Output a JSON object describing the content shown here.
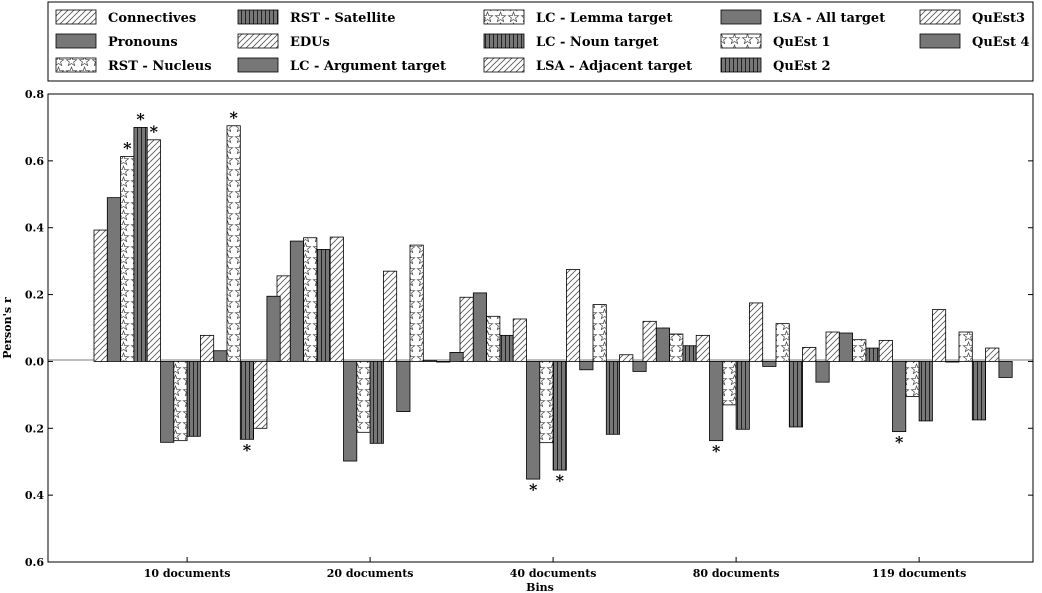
{
  "chart_data": {
    "type": "bar",
    "title": "",
    "xlabel": "Bins",
    "ylabel": "Person's r",
    "ylim": [
      -0.6,
      0.8
    ],
    "yticks": [
      0.8,
      0.6,
      0.4,
      0.2,
      0.0,
      -0.2,
      -0.4,
      -0.6
    ],
    "ytick_labels": [
      "0.8",
      "0.6",
      "0.4",
      "0.2",
      "0.0",
      "0.2",
      "0.4",
      "0.6"
    ],
    "categories": [
      "10 documents",
      "20 documents",
      "40 documents",
      "80 documents",
      "119 documents"
    ],
    "legend_position": "top",
    "significance_marker": "*",
    "series": [
      {
        "name": "Connectives",
        "pattern": "diag",
        "fill": "#ffffff",
        "values": [
          0.393,
          0.256,
          0.192,
          0.12,
          0.088
        ],
        "sig": []
      },
      {
        "name": "Pronouns",
        "pattern": "solid",
        "fill": "#777777",
        "values": [
          0.49,
          0.36,
          0.205,
          0.1,
          0.085
        ],
        "sig": []
      },
      {
        "name": "RST - Nucleus",
        "pattern": "star",
        "fill": "#ffffff",
        "values": [
          0.613,
          0.37,
          0.135,
          0.082,
          0.065
        ],
        "sig": [
          0
        ]
      },
      {
        "name": "RST - Satellite",
        "pattern": "vert",
        "fill": "#777777",
        "values": [
          0.7,
          0.335,
          0.078,
          0.047,
          0.04
        ],
        "sig": [
          0
        ]
      },
      {
        "name": "EDUs",
        "pattern": "diag",
        "fill": "#ffffff",
        "values": [
          0.663,
          0.372,
          0.127,
          0.078,
          0.063
        ],
        "sig": [
          0
        ]
      },
      {
        "name": "LC - Argument target",
        "pattern": "solid",
        "fill": "#777777",
        "values": [
          -0.242,
          -0.298,
          -0.352,
          -0.237,
          -0.21
        ],
        "sig": [
          2,
          3,
          4
        ]
      },
      {
        "name": "LC - Lemma target",
        "pattern": "star",
        "fill": "#ffffff",
        "values": [
          -0.237,
          -0.212,
          -0.243,
          -0.13,
          -0.105
        ],
        "sig": []
      },
      {
        "name": "LC - Noun target",
        "pattern": "vert",
        "fill": "#777777",
        "values": [
          -0.224,
          -0.245,
          -0.325,
          -0.203,
          -0.178
        ],
        "sig": [
          2
        ]
      },
      {
        "name": "LSA - Adjacent target",
        "pattern": "diag",
        "fill": "#ffffff",
        "values": [
          0.078,
          0.27,
          0.275,
          0.175,
          0.155
        ],
        "sig": []
      },
      {
        "name": "LSA - All target",
        "pattern": "solid",
        "fill": "#777777",
        "values": [
          0.032,
          -0.15,
          -0.025,
          -0.015,
          0.0
        ],
        "sig": []
      },
      {
        "name": "QuEst 1",
        "pattern": "star",
        "fill": "#ffffff",
        "values": [
          0.705,
          0.348,
          0.17,
          0.113,
          0.088
        ],
        "sig": [
          0
        ]
      },
      {
        "name": "QuEst 2",
        "pattern": "vert",
        "fill": "#777777",
        "values": [
          -0.233,
          0.002,
          -0.218,
          -0.196,
          -0.175
        ],
        "sig": [
          0
        ]
      },
      {
        "name": "QuEst3",
        "pattern": "diag",
        "fill": "#ffffff",
        "values": [
          -0.2,
          0.0,
          0.02,
          0.042,
          0.04
        ],
        "sig": []
      },
      {
        "name": "QuEst 4",
        "pattern": "solid",
        "fill": "#777777",
        "values": [
          0.195,
          0.027,
          -0.03,
          -0.062,
          -0.048
        ],
        "sig": []
      }
    ]
  }
}
